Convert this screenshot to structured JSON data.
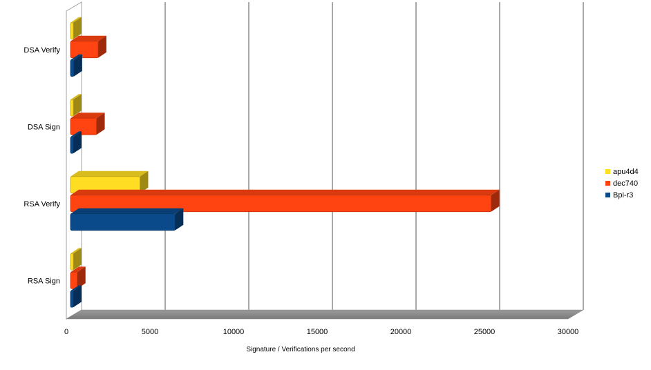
{
  "chart_data": {
    "type": "bar",
    "orientation": "horizontal",
    "title": "",
    "xlabel": "Signature / Verifications per second",
    "ylabel": "",
    "xlim": [
      0,
      30000
    ],
    "xticks": [
      0,
      5000,
      10000,
      15000,
      20000,
      25000,
      30000
    ],
    "categories": [
      "DSA Verify",
      "DSA Sign",
      "RSA Verify",
      "RSA Sign"
    ],
    "series": [
      {
        "name": "apu4d4",
        "color": "#ffdd22",
        "values": [
          300,
          250,
          4400,
          100
        ]
      },
      {
        "name": "dec740",
        "color": "#ff4411",
        "values": [
          1900,
          1800,
          25400,
          650
        ]
      },
      {
        "name": "Bpi-r3",
        "color": "#0a4a8a",
        "values": [
          450,
          400,
          6500,
          300
        ]
      }
    ],
    "grid": true,
    "legend_position": "right"
  }
}
